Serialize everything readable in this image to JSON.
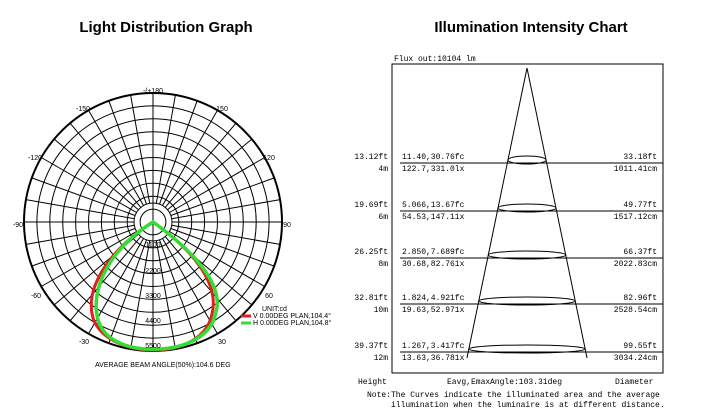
{
  "left_chart": {
    "title": "Light Distribution Graph",
    "angle_labels": [
      "-/+180",
      "150",
      "-150",
      "120",
      "-120",
      "90",
      "-90",
      "60",
      "-60",
      "30",
      "-30"
    ],
    "radial_labels": [
      "1100",
      "2200",
      "3300",
      "4400",
      "5500"
    ],
    "unit": "UNIT:cd",
    "legend": [
      "V 0.00DEG PLAN,104.4°",
      "H 0.00DEG PLAN,104.8°"
    ],
    "footer": "AVERAGE BEAM ANGLE(50%):104.6 DEG"
  },
  "right_chart": {
    "title": "Illumination Intensity Chart",
    "flux": "Flux out:10104 lm",
    "rows": [
      {
        "height_ft": "13.12ft",
        "height_m": "4m",
        "fc": "11.40,30.76fc",
        "lx": "122.7,331.0lx",
        "diameter_ft": "33.18ft",
        "diameter_cm": "1011.41cm"
      },
      {
        "height_ft": "19.69ft",
        "height_m": "6m",
        "fc": "5.066,13.67fc",
        "lx": "54.53,147.11x",
        "diameter_ft": "49.77ft",
        "diameter_cm": "1517.12cm"
      },
      {
        "height_ft": "26.25ft",
        "height_m": "8m",
        "fc": "2.850,7.689fc",
        "lx": "30.68,82.761x",
        "diameter_ft": "66.37ft",
        "diameter_cm": "2022.83cm"
      },
      {
        "height_ft": "32.81ft",
        "height_m": "10m",
        "fc": "1.824,4.921fc",
        "lx": "19.63,52.971x",
        "diameter_ft": "82.96ft",
        "diameter_cm": "2528.54cm"
      },
      {
        "height_ft": "39.37ft",
        "height_m": "12m",
        "fc": "1.267,3.417fc",
        "lx": "13.63,36.781x",
        "diameter_ft": "99.55ft",
        "diameter_cm": "3034.24cm"
      }
    ],
    "headers": [
      "Height",
      "Eavg,Emax",
      "Angle:103.31deg",
      "Diameter"
    ],
    "note": [
      "Note:The Curves indicate the illuminated area and the average",
      "illumination when the luminaire is at different distance."
    ]
  }
}
